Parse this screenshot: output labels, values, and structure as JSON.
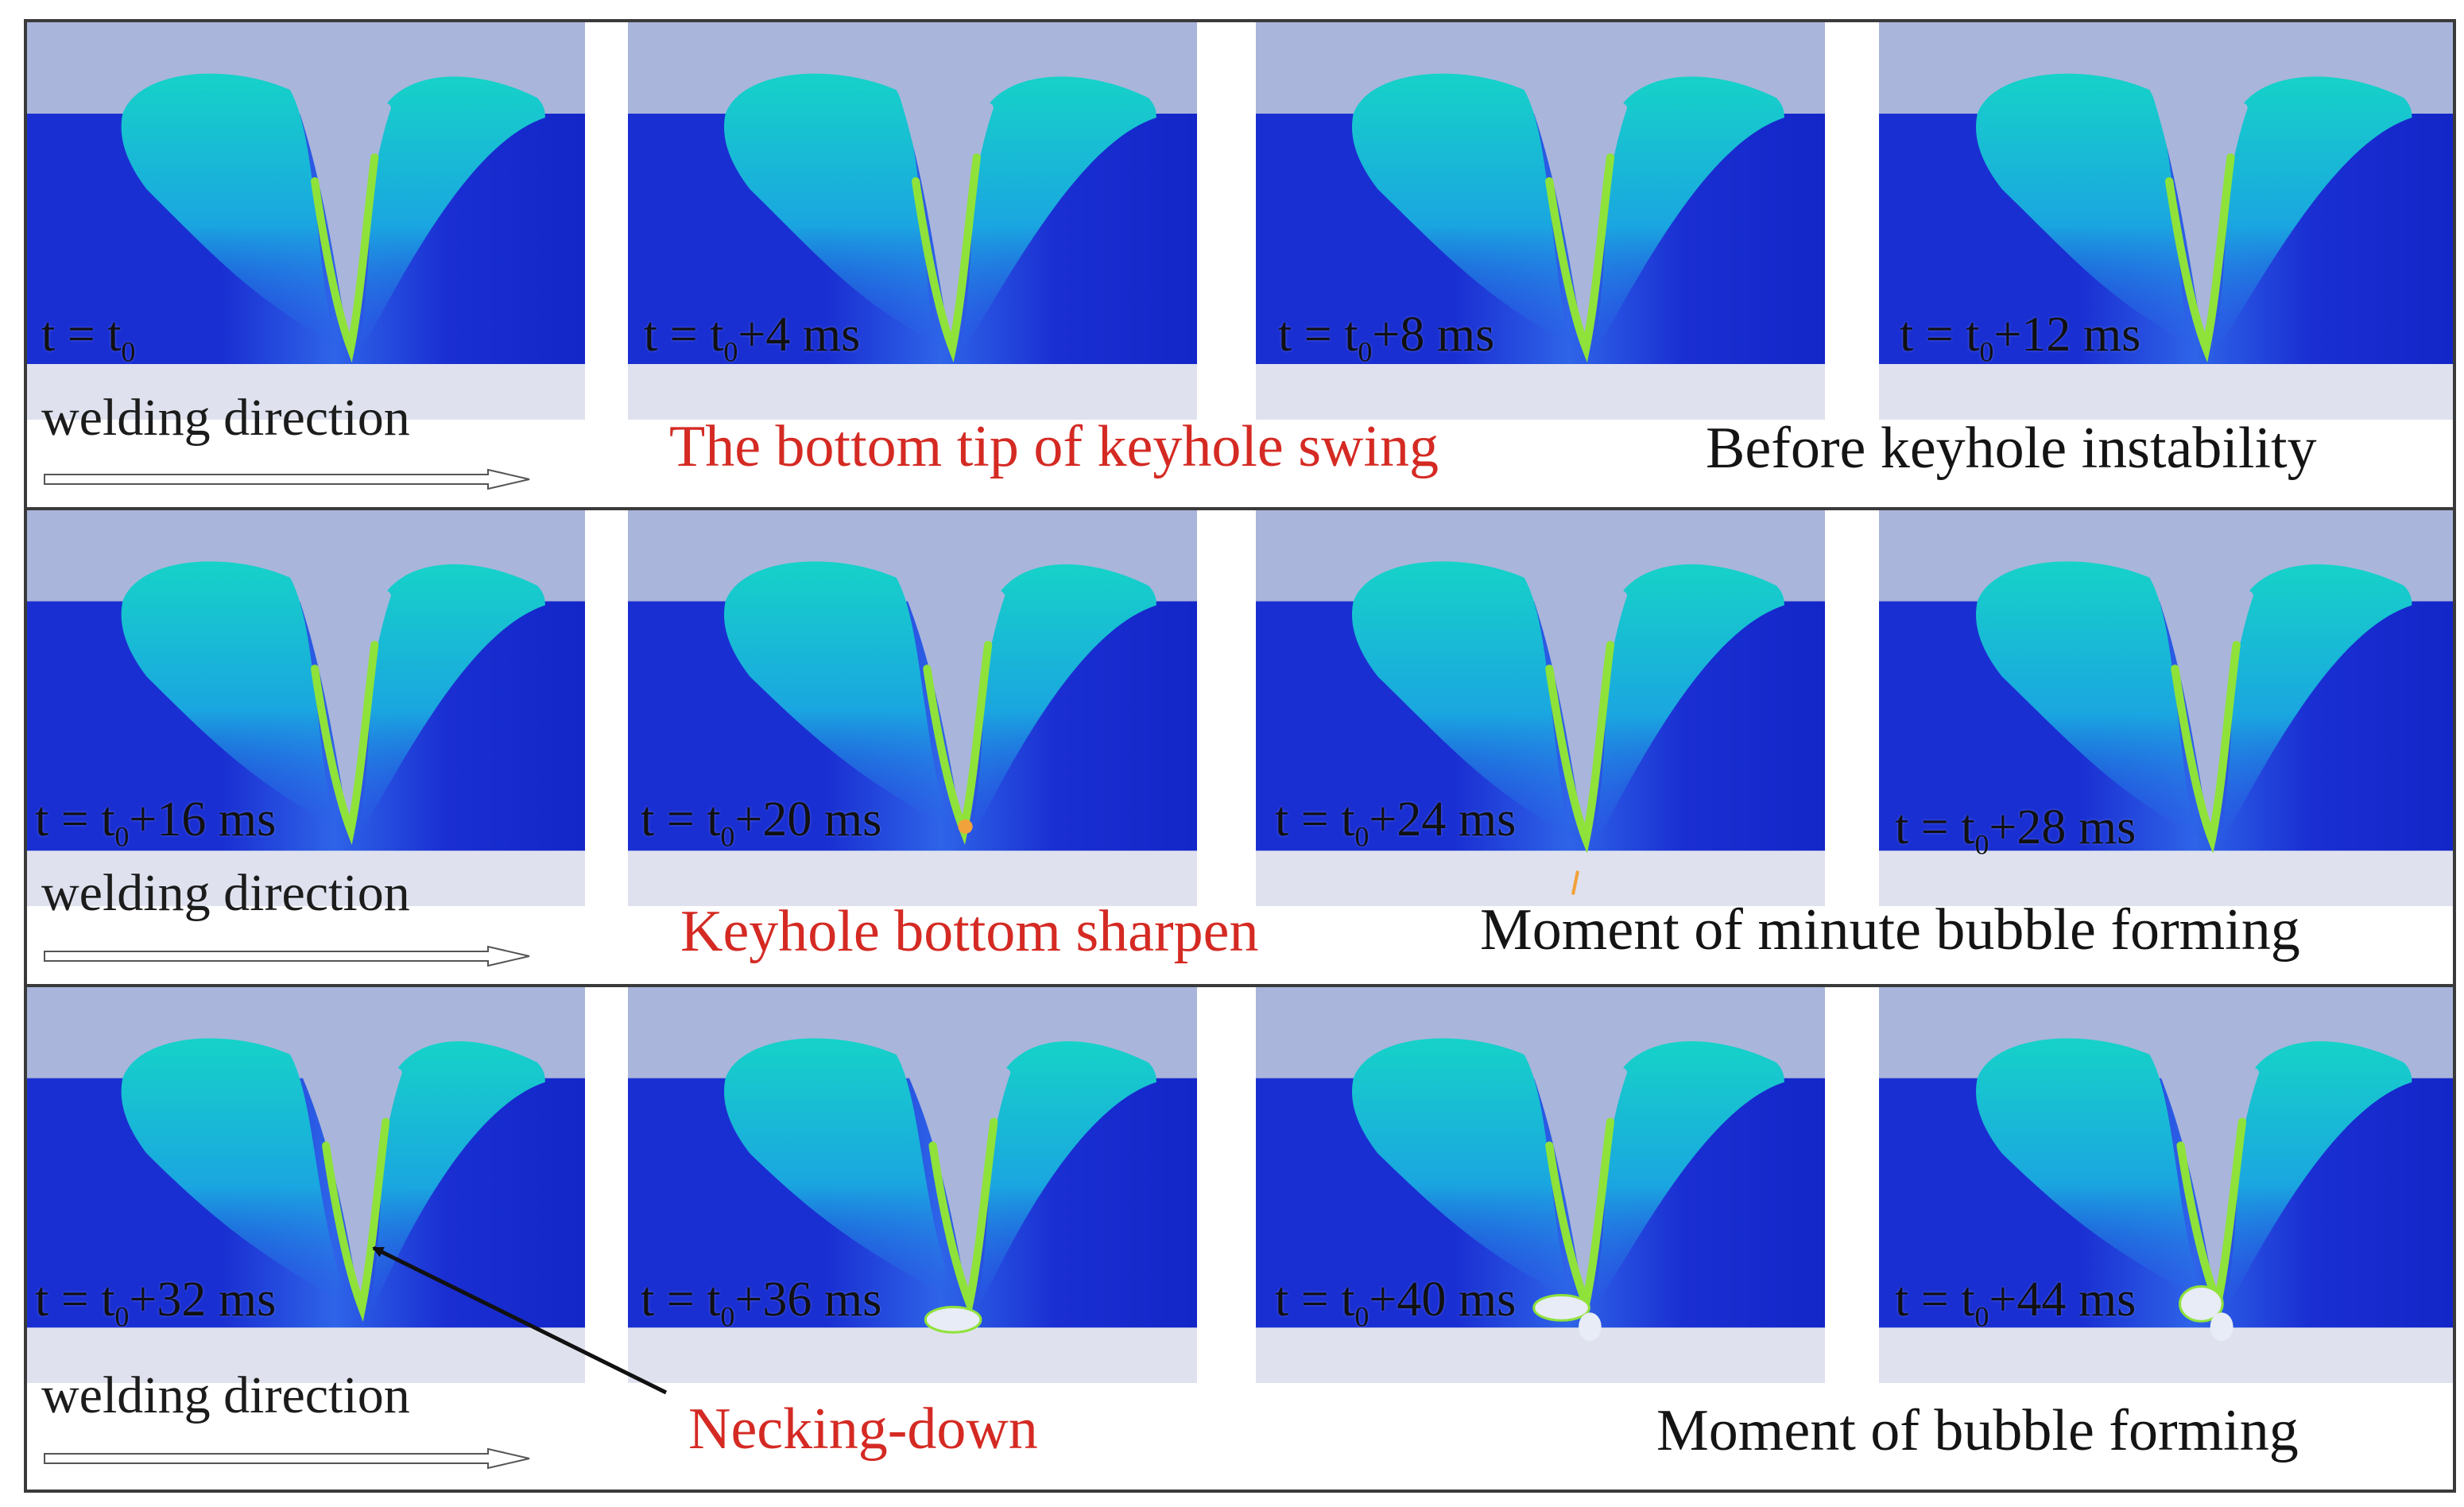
{
  "rows": [
    {
      "direction_label": "welding direction",
      "captions": [
        {
          "text": "The bottom tip of keyhole swing",
          "color": "#d42a23"
        },
        {
          "text": "Before keyhole instability",
          "color": "#141414"
        }
      ],
      "panels": [
        {
          "prefix": "t = t",
          "suffix": ""
        },
        {
          "prefix": "t = t",
          "suffix": "+4 ms"
        },
        {
          "prefix": "t = t",
          "suffix": "+8 ms"
        },
        {
          "prefix": "t = t",
          "suffix": "+12 ms"
        }
      ]
    },
    {
      "direction_label": "welding direction",
      "captions": [
        {
          "text": "Keyhole bottom sharpen",
          "color": "#d42a23"
        },
        {
          "text": "Moment of minute bubble forming",
          "color": "#141414"
        }
      ],
      "panels": [
        {
          "prefix": "t = t",
          "suffix": "+16 ms"
        },
        {
          "prefix": "t = t",
          "suffix": "+20 ms"
        },
        {
          "prefix": "t = t",
          "suffix": "+24 ms"
        },
        {
          "prefix": "t = t",
          "suffix": "+28 ms"
        }
      ]
    },
    {
      "direction_label": "welding direction",
      "captions": [
        {
          "text": "Necking-down",
          "color": "#d42a23"
        },
        {
          "text": "Moment of bubble forming",
          "color": "#141414"
        }
      ],
      "panels": [
        {
          "prefix": "t = t",
          "suffix": "+32 ms"
        },
        {
          "prefix": "t = t",
          "suffix": "+36 ms"
        },
        {
          "prefix": "t = t",
          "suffix": "+40 ms"
        },
        {
          "prefix": "t = t",
          "suffix": "+44 ms"
        }
      ]
    }
  ],
  "subscript": "0",
  "colors": {
    "gas": "#a9b5db",
    "metal": "#1a2fd2",
    "melt": "#16d2c8",
    "melt_edge": "#8fe23a",
    "highlight": "#f2a23a",
    "red_caption": "#d42a23",
    "frame": "#3a3a3a"
  }
}
